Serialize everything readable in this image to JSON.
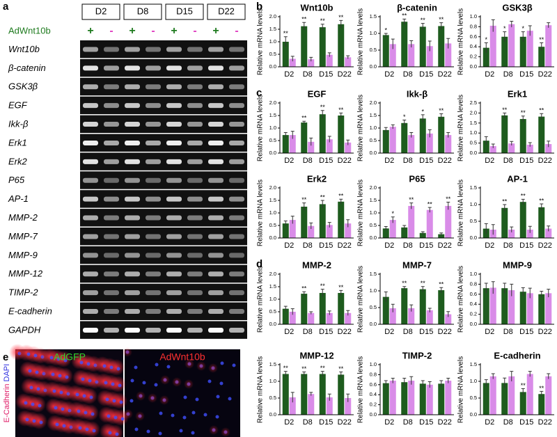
{
  "panels": {
    "a": "a",
    "b": "b",
    "c": "c",
    "d": "d",
    "e": "e"
  },
  "gel": {
    "row_label": "AdWnt10b",
    "days": [
      "D2",
      "D8",
      "D15",
      "D22"
    ],
    "signs": [
      "+",
      "-",
      "+",
      "-",
      "+",
      "-",
      "+",
      "-"
    ],
    "genes": [
      "Wnt10b",
      "β-catenin",
      "GSK3β",
      "EGF",
      "Ikk-β",
      "Erk1",
      "Erk2",
      "P65",
      "AP-1",
      "MMP-2",
      "MMP-7",
      "MMP-9",
      "MMP-12",
      "TIMP-2",
      "E-cadherin",
      "GAPDH"
    ]
  },
  "images": {
    "ylabel_1": "E-Cadherin",
    "ylabel_2": "DAPI",
    "left": "AdGFP",
    "right": "AdWnt10b"
  },
  "chart_data": [
    {
      "type": "bar",
      "title": "Wnt10b",
      "ylabel": "Relative mRNA levels",
      "categories": [
        "D2",
        "D8",
        "D15",
        "D22"
      ],
      "ylim": [
        0,
        2
      ],
      "yticks": [
        {
          "value": 0,
          "label": "0.0"
        },
        0.5,
        {
          "value": 1,
          "label": "1.0"
        },
        1.5,
        {
          "value": 2,
          "label": "2.0"
        }
      ],
      "series": [
        {
          "color": "#1e5c1e",
          "values": [
            1.0,
            1.62,
            1.58,
            1.7
          ],
          "errors": [
            0.2,
            0.15,
            0.12,
            0.15
          ],
          "annotations": [
            "**",
            "**",
            "**",
            "**"
          ]
        },
        {
          "color": "#d98ce8",
          "values": [
            0.32,
            0.3,
            0.48,
            0.38
          ],
          "errors": [
            0.1,
            0.08,
            0.08,
            0.06
          ]
        }
      ]
    },
    {
      "type": "bar",
      "title": "β-catenin",
      "ylabel": "Relative mRNA levels",
      "categories": [
        "D2",
        "D8",
        "D15",
        "D22"
      ],
      "ylim": [
        0,
        1.5
      ],
      "yticks": [
        {
          "value": 0,
          "label": "0.0"
        },
        0.5,
        {
          "value": 1,
          "label": "1.0"
        },
        1.5
      ],
      "series": [
        {
          "color": "#1e5c1e",
          "values": [
            0.95,
            1.35,
            1.2,
            1.22
          ],
          "errors": [
            0.05,
            0.08,
            0.1,
            0.1
          ],
          "annotations": [
            "*",
            "**",
            "**",
            "**"
          ]
        },
        {
          "color": "#d98ce8",
          "values": [
            0.68,
            0.68,
            0.62,
            0.7
          ],
          "errors": [
            0.15,
            0.1,
            0.15,
            0.15
          ]
        }
      ]
    },
    {
      "type": "bar",
      "title": "GSK3β",
      "ylabel": "Relative mRNA levels",
      "categories": [
        "D2",
        "D8",
        "D15",
        "D22"
      ],
      "ylim": [
        0,
        1
      ],
      "yticks": [
        {
          "value": 0,
          "label": "0.0"
        },
        0.2,
        0.4,
        0.6,
        0.8,
        {
          "value": 1,
          "label": "1.0"
        }
      ],
      "series": [
        {
          "color": "#1e5c1e",
          "values": [
            0.38,
            0.6,
            0.6,
            0.4
          ],
          "errors": [
            0.1,
            0.1,
            0.1,
            0.08
          ],
          "annotations": [
            "*",
            "*",
            "*",
            "**"
          ]
        },
        {
          "color": "#d98ce8",
          "values": [
            0.82,
            0.85,
            0.72,
            0.83
          ],
          "errors": [
            0.12,
            0.06,
            0.1,
            0.05
          ]
        }
      ]
    },
    {
      "type": "bar",
      "title": "EGF",
      "ylabel": "Relative mRNA levels",
      "categories": [
        "D2",
        "D8",
        "D15",
        "D22"
      ],
      "ylim": [
        0,
        2
      ],
      "yticks": [
        {
          "value": 0,
          "label": "0.0"
        },
        0.5,
        {
          "value": 1,
          "label": "1.0"
        },
        1.5,
        {
          "value": 2,
          "label": "2.0"
        }
      ],
      "series": [
        {
          "color": "#1e5c1e",
          "values": [
            0.72,
            1.22,
            1.55,
            1.5
          ],
          "errors": [
            0.1,
            0.05,
            0.15,
            0.1
          ],
          "annotations": [
            null,
            "**",
            "**",
            "**"
          ]
        },
        {
          "color": "#d98ce8",
          "values": [
            0.72,
            0.45,
            0.55,
            0.42
          ],
          "errors": [
            0.15,
            0.15,
            0.12,
            0.1
          ]
        }
      ]
    },
    {
      "type": "bar",
      "title": "Ikk-β",
      "ylabel": "Relative mRNA levels",
      "categories": [
        "D2",
        "D8",
        "D15",
        "D22"
      ],
      "ylim": [
        0,
        2
      ],
      "yticks": [
        {
          "value": 0,
          "label": "0.0"
        },
        0.5,
        {
          "value": 1,
          "label": "1.0"
        },
        1.5,
        {
          "value": 2,
          "label": "2.0"
        }
      ],
      "series": [
        {
          "color": "#1e5c1e",
          "values": [
            0.92,
            1.2,
            1.38,
            1.45
          ],
          "errors": [
            0.1,
            0.12,
            0.15,
            0.12
          ],
          "annotations": [
            null,
            "*",
            "*",
            "**"
          ]
        },
        {
          "color": "#d98ce8",
          "values": [
            1.05,
            0.72,
            0.78,
            0.72
          ],
          "errors": [
            0.08,
            0.1,
            0.15,
            0.1
          ]
        }
      ]
    },
    {
      "type": "bar",
      "title": "Erk1",
      "ylabel": "Relative mRNA levels",
      "categories": [
        "D2",
        "D8",
        "D15",
        "D22"
      ],
      "ylim": [
        0,
        2.5
      ],
      "yticks": [
        {
          "value": 0,
          "label": "0.0"
        },
        0.5,
        {
          "value": 1,
          "label": "1.0"
        },
        1.5,
        {
          "value": 2,
          "label": "2.0"
        },
        2.5
      ],
      "series": [
        {
          "color": "#1e5c1e",
          "values": [
            0.62,
            1.88,
            1.7,
            1.82
          ],
          "errors": [
            0.2,
            0.12,
            0.15,
            0.15
          ],
          "annotations": [
            null,
            "**",
            "**",
            "**"
          ]
        },
        {
          "color": "#d98ce8",
          "values": [
            0.35,
            0.48,
            0.42,
            0.45
          ],
          "errors": [
            0.1,
            0.1,
            0.1,
            0.15
          ]
        }
      ]
    },
    {
      "type": "bar",
      "title": "Erk2",
      "ylabel": "Relative mRNA levels",
      "categories": [
        "D2",
        "D8",
        "D15",
        "D22"
      ],
      "ylim": [
        0,
        2
      ],
      "yticks": [
        {
          "value": 0,
          "label": "0.0"
        },
        0.5,
        {
          "value": 1,
          "label": "1.0"
        },
        1.5,
        {
          "value": 2,
          "label": "2.0"
        }
      ],
      "series": [
        {
          "color": "#1e5c1e",
          "values": [
            0.58,
            1.25,
            1.35,
            1.45
          ],
          "errors": [
            0.1,
            0.15,
            0.15,
            0.1
          ],
          "annotations": [
            null,
            "**",
            "**",
            "**"
          ]
        },
        {
          "color": "#d98ce8",
          "values": [
            0.72,
            0.48,
            0.52,
            0.58
          ],
          "errors": [
            0.15,
            0.12,
            0.1,
            0.15
          ]
        }
      ]
    },
    {
      "type": "bar",
      "title": "P65",
      "ylabel": "Relative mRNA levels",
      "categories": [
        "D2",
        "D8",
        "D15",
        "D22"
      ],
      "ylim": [
        0,
        2
      ],
      "yticks": [
        {
          "value": 0,
          "label": "0.0"
        },
        0.5,
        {
          "value": 1,
          "label": "1.0"
        },
        1.5,
        {
          "value": 2,
          "label": "2.0"
        }
      ],
      "series": [
        {
          "color": "#1e5c1e",
          "values": [
            0.38,
            0.42,
            0.2,
            0.15
          ],
          "errors": [
            0.08,
            0.08,
            0.05,
            0.05
          ]
        },
        {
          "color": "#d98ce8",
          "values": [
            0.72,
            1.28,
            1.12,
            1.28
          ],
          "errors": [
            0.12,
            0.12,
            0.1,
            0.15
          ],
          "annotations": [
            "*",
            "**",
            "**",
            "**"
          ]
        }
      ]
    },
    {
      "type": "bar",
      "title": "AP-1",
      "ylabel": "Relative mRNA levels",
      "categories": [
        "D2",
        "D8",
        "D15",
        "D22"
      ],
      "ylim": [
        0,
        1.5
      ],
      "yticks": [
        {
          "value": 0,
          "label": "0.0"
        },
        0.5,
        {
          "value": 1,
          "label": "1.0"
        },
        1.5
      ],
      "series": [
        {
          "color": "#1e5c1e",
          "values": [
            0.28,
            0.9,
            1.08,
            0.92
          ],
          "errors": [
            0.15,
            0.1,
            0.08,
            0.1
          ],
          "annotations": [
            null,
            "**",
            "**",
            "**"
          ]
        },
        {
          "color": "#d98ce8",
          "values": [
            0.25,
            0.25,
            0.25,
            0.28
          ],
          "errors": [
            0.15,
            0.08,
            0.1,
            0.08
          ]
        }
      ]
    },
    {
      "type": "bar",
      "title": "MMP-2",
      "ylabel": "Relative mRNA levels",
      "categories": [
        "D2",
        "D8",
        "D15",
        "D22"
      ],
      "ylim": [
        0,
        2
      ],
      "yticks": [
        {
          "value": 0,
          "label": "0.0"
        },
        0.5,
        {
          "value": 1,
          "label": "1.0"
        },
        1.5,
        {
          "value": 2,
          "label": "2.0"
        }
      ],
      "series": [
        {
          "color": "#1e5c1e",
          "values": [
            0.62,
            1.22,
            1.25,
            1.25
          ],
          "errors": [
            0.1,
            0.08,
            0.15,
            0.1
          ],
          "annotations": [
            null,
            "**",
            "**",
            "**"
          ]
        },
        {
          "color": "#d98ce8",
          "values": [
            0.5,
            0.45,
            0.45,
            0.45
          ],
          "errors": [
            0.12,
            0.05,
            0.08,
            0.1
          ]
        }
      ]
    },
    {
      "type": "bar",
      "title": "MMP-7",
      "ylabel": "Relative mRNA levels",
      "categories": [
        "D2",
        "D8",
        "D15",
        "D22"
      ],
      "ylim": [
        0,
        1.5
      ],
      "yticks": [
        {
          "value": 0,
          "label": "0.0"
        },
        0.5,
        {
          "value": 1,
          "label": "1.0"
        },
        1.5
      ],
      "series": [
        {
          "color": "#1e5c1e",
          "values": [
            0.82,
            1.08,
            1.05,
            1.02
          ],
          "errors": [
            0.15,
            0.05,
            0.08,
            0.08
          ],
          "annotations": [
            null,
            "**",
            "**",
            "**"
          ]
        },
        {
          "color": "#d98ce8",
          "values": [
            0.48,
            0.48,
            0.42,
            0.3
          ],
          "errors": [
            0.12,
            0.1,
            0.06,
            0.08
          ]
        }
      ]
    },
    {
      "type": "bar",
      "title": "MMP-9",
      "ylabel": "Relative mRNA levels",
      "categories": [
        "D2",
        "D8",
        "D15",
        "D22"
      ],
      "ylim": [
        0,
        1
      ],
      "yticks": [
        {
          "value": 0,
          "label": "0.0"
        },
        0.2,
        0.4,
        0.6,
        0.8,
        {
          "value": 1,
          "label": "1.0"
        }
      ],
      "series": [
        {
          "color": "#1e5c1e",
          "values": [
            0.72,
            0.72,
            0.65,
            0.6
          ],
          "errors": [
            0.1,
            0.1,
            0.08,
            0.06
          ]
        },
        {
          "color": "#d98ce8",
          "values": [
            0.73,
            0.68,
            0.62,
            0.62
          ],
          "errors": [
            0.12,
            0.12,
            0.1,
            0.08
          ]
        }
      ]
    },
    {
      "type": "bar",
      "title": "MMP-12",
      "ylabel": "Relative mRNA levels",
      "categories": [
        "D2",
        "D8",
        "D15",
        "D22"
      ],
      "ylim": [
        0,
        1.5
      ],
      "yticks": [
        {
          "value": 0,
          "label": "0.0"
        },
        0.5,
        {
          "value": 1,
          "label": "1.0"
        },
        1.5
      ],
      "series": [
        {
          "color": "#1e5c1e",
          "values": [
            1.22,
            1.22,
            1.22,
            1.2
          ],
          "errors": [
            0.08,
            0.06,
            0.08,
            0.08
          ],
          "annotations": [
            "**",
            "**",
            "**",
            "**"
          ]
        },
        {
          "color": "#d98ce8",
          "values": [
            0.52,
            0.62,
            0.52,
            0.5
          ],
          "errors": [
            0.15,
            0.05,
            0.1,
            0.12
          ]
        }
      ]
    },
    {
      "type": "bar",
      "title": "TIMP-2",
      "ylabel": "Relative mRNA levels",
      "categories": [
        "D2",
        "D8",
        "D15",
        "D22"
      ],
      "ylim": [
        0,
        1
      ],
      "yticks": [
        {
          "value": 0,
          "label": "0.0"
        },
        0.2,
        0.4,
        0.6,
        0.8,
        {
          "value": 1,
          "label": "1.0"
        }
      ],
      "series": [
        {
          "color": "#1e5c1e",
          "values": [
            0.63,
            0.65,
            0.62,
            0.62
          ],
          "errors": [
            0.05,
            0.08,
            0.06,
            0.06
          ]
        },
        {
          "color": "#d98ce8",
          "values": [
            0.68,
            0.68,
            0.6,
            0.68
          ],
          "errors": [
            0.05,
            0.08,
            0.06,
            0.05
          ]
        }
      ]
    },
    {
      "type": "bar",
      "title": "E-cadherin",
      "ylabel": "Relative mRNA levels",
      "categories": [
        "D2",
        "D8",
        "D15",
        "D22"
      ],
      "ylim": [
        0,
        1.5
      ],
      "yticks": [
        {
          "value": 0,
          "label": "0.0"
        },
        0.5,
        {
          "value": 1,
          "label": "1.0"
        },
        1.5
      ],
      "series": [
        {
          "color": "#1e5c1e",
          "values": [
            0.95,
            0.95,
            0.68,
            0.62
          ],
          "errors": [
            0.1,
            0.15,
            0.1,
            0.08
          ],
          "annotations": [
            null,
            null,
            "**",
            "**"
          ]
        },
        {
          "color": "#d98ce8",
          "values": [
            1.15,
            1.15,
            1.22,
            1.15
          ],
          "errors": [
            0.08,
            0.15,
            0.08,
            0.08
          ]
        }
      ]
    }
  ]
}
